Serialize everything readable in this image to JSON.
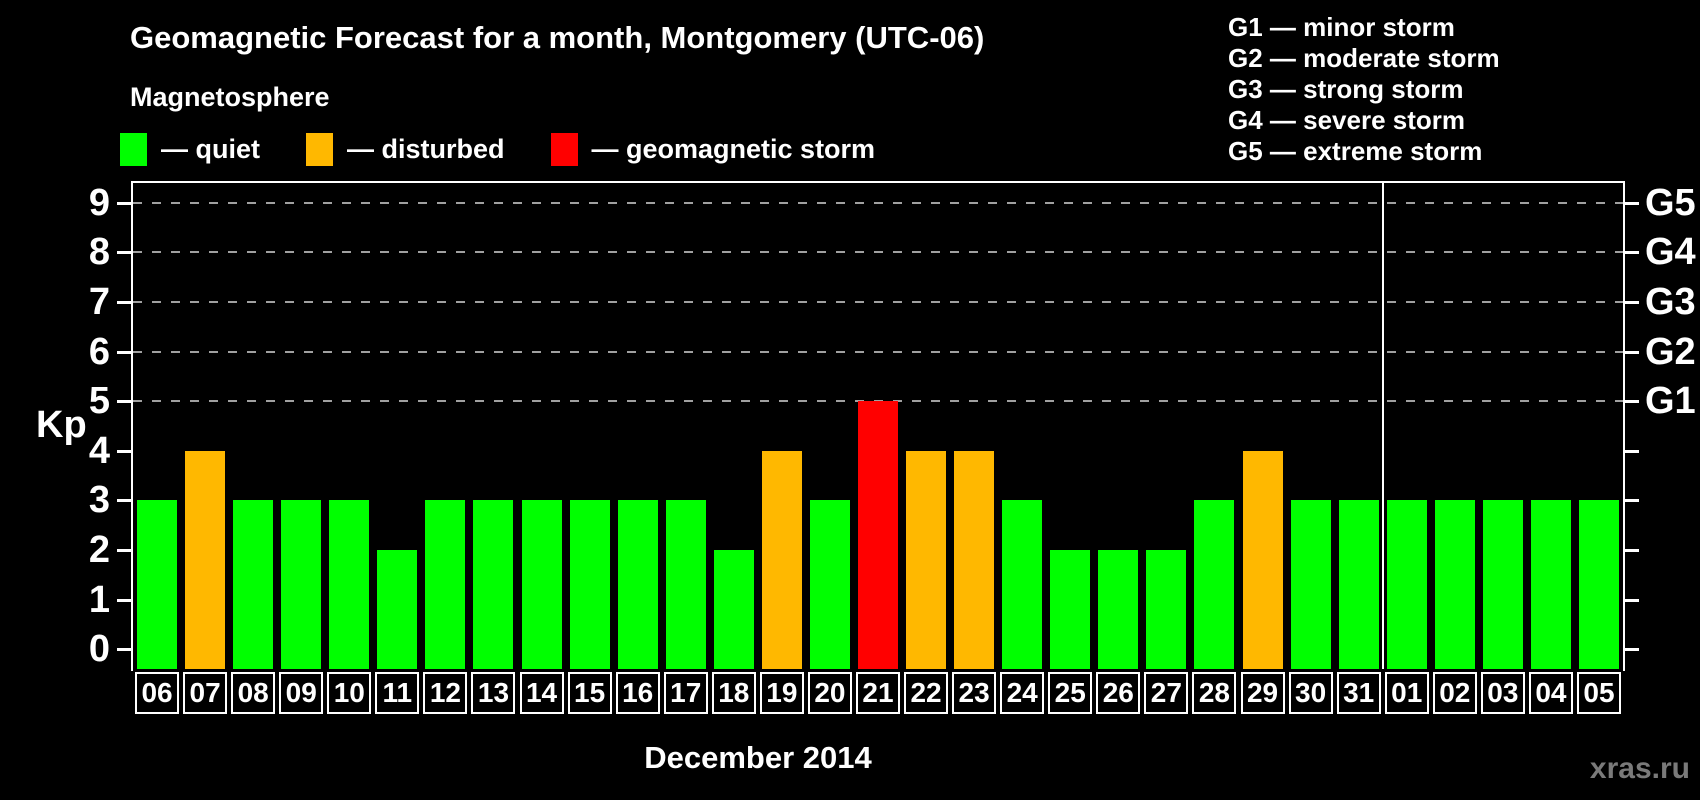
{
  "header": {
    "title": "Geomagnetic Forecast for a month, Montgomery (UTC-06)",
    "subtitle": "Magnetosphere"
  },
  "legend": {
    "items": [
      {
        "name": "quiet",
        "label": "— quiet",
        "color": "#00ff00"
      },
      {
        "name": "disturbed",
        "label": "— disturbed",
        "color": "#ffb800"
      },
      {
        "name": "storm",
        "label": "— geomagnetic storm",
        "color": "#ff0000"
      }
    ]
  },
  "g_scale_legend": {
    "items": [
      "G1 — minor storm",
      "G2 — moderate storm",
      "G3 — strong storm",
      "G4 — severe storm",
      "G5 — extreme storm"
    ]
  },
  "watermark": "xras.ru",
  "chart_data": {
    "type": "bar",
    "title": "Geomagnetic Forecast for a month, Montgomery (UTC-06)",
    "xlabel": "December 2014",
    "ylabel": "Kp",
    "ylim": [
      0,
      9
    ],
    "grid": "dashed horizontal lines at Kp 5-9 (G1-G5 levels)",
    "legend_position": "top-left",
    "categories": [
      "06",
      "07",
      "08",
      "09",
      "10",
      "11",
      "12",
      "13",
      "14",
      "15",
      "16",
      "17",
      "18",
      "19",
      "20",
      "21",
      "22",
      "23",
      "24",
      "25",
      "26",
      "27",
      "28",
      "29",
      "30",
      "31",
      "01",
      "02",
      "03",
      "04",
      "05"
    ],
    "values": [
      3,
      4,
      3,
      3,
      3,
      2,
      3,
      3,
      3,
      3,
      3,
      3,
      2,
      4,
      3,
      5,
      4,
      4,
      3,
      2,
      2,
      2,
      3,
      4,
      3,
      3,
      3,
      3,
      3,
      3,
      3
    ],
    "statuses": [
      "quiet",
      "disturbed",
      "quiet",
      "quiet",
      "quiet",
      "quiet",
      "quiet",
      "quiet",
      "quiet",
      "quiet",
      "quiet",
      "quiet",
      "quiet",
      "disturbed",
      "quiet",
      "storm",
      "disturbed",
      "disturbed",
      "quiet",
      "quiet",
      "quiet",
      "quiet",
      "quiet",
      "disturbed",
      "quiet",
      "quiet",
      "quiet",
      "quiet",
      "quiet",
      "quiet",
      "quiet"
    ],
    "status_colors": {
      "quiet": "#00ff00",
      "disturbed": "#ffb800",
      "storm": "#ff0000"
    },
    "left_ticks": [
      0,
      1,
      2,
      3,
      4,
      5,
      6,
      7,
      8,
      9
    ],
    "right_ticks": [
      {
        "kp": 5,
        "label": "G1"
      },
      {
        "kp": 6,
        "label": "G2"
      },
      {
        "kp": 7,
        "label": "G3"
      },
      {
        "kp": 8,
        "label": "G4"
      },
      {
        "kp": 9,
        "label": "G5"
      }
    ],
    "dashed_gridlines_at": [
      5,
      6,
      7,
      8,
      9
    ],
    "month_separator_after_category": "31"
  }
}
